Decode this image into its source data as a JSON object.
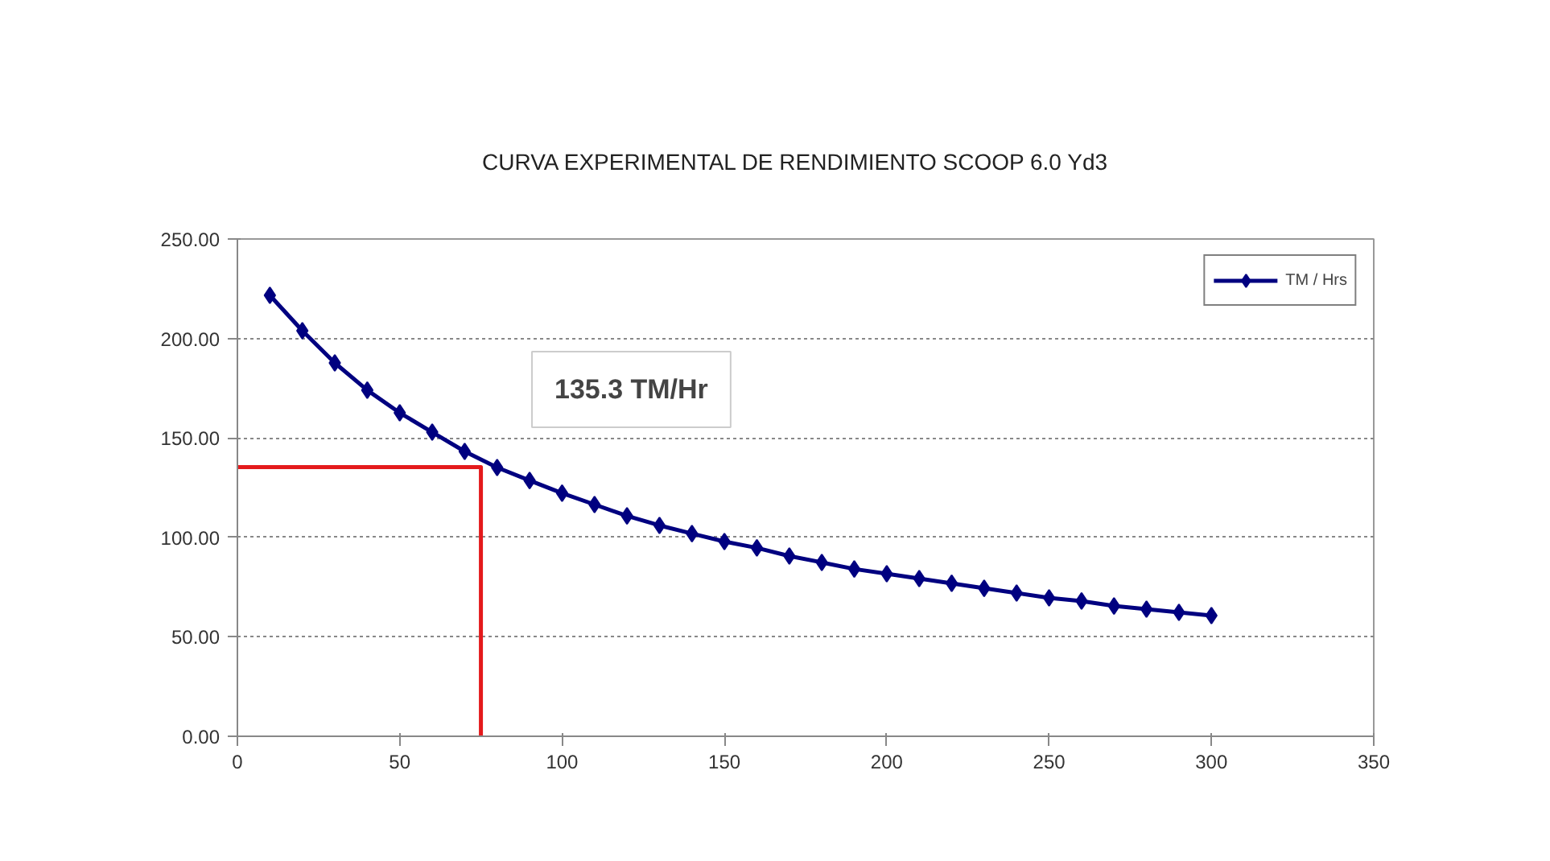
{
  "chart_data": {
    "type": "line",
    "title": "CURVA  EXPERIMENTAL DE  RENDIMIENTO SCOOP  6.0 Yd3",
    "xlim": [
      0,
      350
    ],
    "xticks": [
      0,
      50,
      100,
      150,
      200,
      250,
      300,
      350
    ],
    "ylim": [
      0,
      250
    ],
    "yticks": [
      {
        "value": 0,
        "label": "0.00"
      },
      {
        "value": 50,
        "label": "50.00"
      },
      {
        "value": 100,
        "label": "100.00"
      },
      {
        "value": 150,
        "label": "150.00"
      },
      {
        "value": 200,
        "label": "200.00"
      },
      {
        "value": 250,
        "label": "250.00"
      }
    ],
    "grid": "y",
    "legend": "top right",
    "marker": "diamond",
    "line_style": "solid",
    "series": [
      {
        "name": "TM / Hrs",
        "color": "#000080",
        "x": [
          10,
          20,
          30,
          40,
          50,
          60,
          70,
          80,
          90,
          100,
          110,
          120,
          130,
          140,
          150,
          160,
          170,
          180,
          190,
          200,
          210,
          220,
          230,
          240,
          250,
          260,
          270,
          280,
          290,
          300
        ],
        "values": [
          221.7,
          203.9,
          187.7,
          174,
          162.6,
          152.9,
          143.2,
          135.1,
          128.6,
          122.2,
          116.5,
          110.8,
          106,
          101.9,
          97.9,
          94.7,
          90.6,
          87.4,
          84.1,
          81.7,
          79.3,
          76.9,
          74.4,
          72,
          69.6,
          68,
          65.5,
          63.9,
          62.3,
          60.7
        ]
      },
      {
        "color": "#e41a1c",
        "marker": "none",
        "x": [
          0,
          75,
          75
        ],
        "values": [
          135.3,
          135.3,
          0
        ]
      }
    ],
    "annotations": [
      "135.3 TM/Hr"
    ]
  }
}
